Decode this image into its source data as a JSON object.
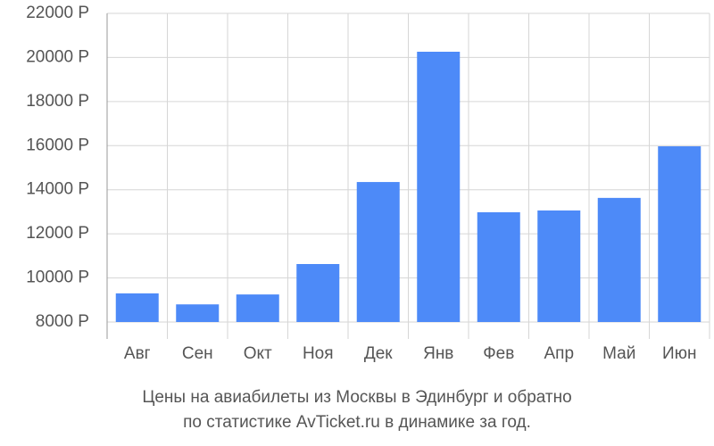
{
  "chart_data": {
    "type": "bar",
    "caption": [
      "Цены на авиабилеты из Москвы в Эдинбург и обратно",
      "по статистике AvTicket.ru в динамике за год."
    ],
    "categories": [
      "Авг",
      "Сен",
      "Окт",
      "Ноя",
      "Дек",
      "Янв",
      "Фев",
      "Апр",
      "Май",
      "Июн"
    ],
    "values": [
      9300,
      8800,
      9250,
      10630,
      14350,
      20260,
      12980,
      13060,
      13630,
      15970
    ],
    "color": "#4d8af8",
    "ylim": [
      8000,
      22000
    ],
    "yticks": [
      {
        "value": 8000,
        "label": "8000 Р"
      },
      {
        "value": 10000,
        "label": "10000 Р"
      },
      {
        "value": 12000,
        "label": "12000 Р"
      },
      {
        "value": 14000,
        "label": "14000 Р"
      },
      {
        "value": 16000,
        "label": "16000 Р"
      },
      {
        "value": 18000,
        "label": "18000 Р"
      },
      {
        "value": 20000,
        "label": "20000 Р"
      },
      {
        "value": 22000,
        "label": "22000 Р"
      }
    ],
    "grid": true
  }
}
